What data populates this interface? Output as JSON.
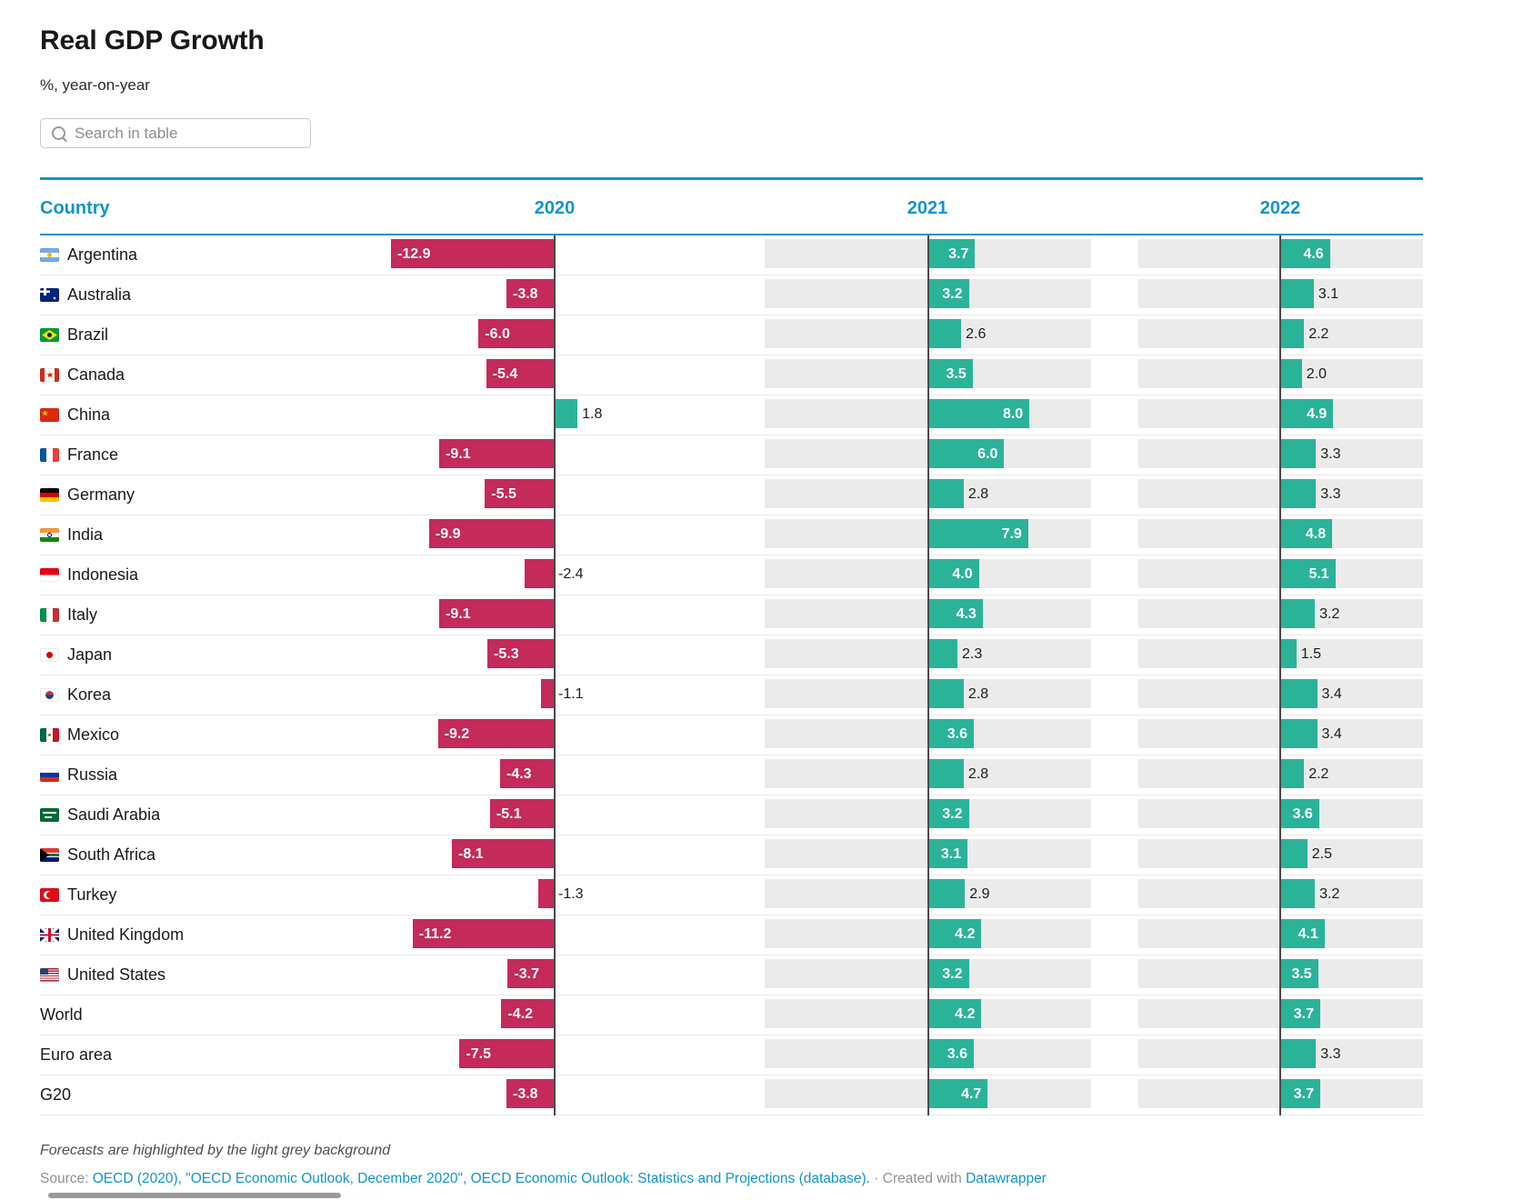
{
  "page": {
    "title": "Real GDP Growth",
    "subtitle": "%, year-on-year"
  },
  "search": {
    "placeholder": "Search in table",
    "icon": "magnifier"
  },
  "table": {
    "header": {
      "country": "Country",
      "y2020": "2020",
      "y2021": "2021",
      "y2022": "2022"
    }
  },
  "colors": {
    "accent_blue": "#1294cc",
    "negative_bar": "#c42a5a",
    "positive_bar": "#2bb39a",
    "forecast_background": "#ebebeb",
    "zero_line": "#4a4a4a",
    "row_separator": "#e9e9e9"
  },
  "chart_data": {
    "type": "bar",
    "title": "Real GDP Growth",
    "subtitle": "%, year-on-year",
    "unit": "%",
    "categories": [
      "2020",
      "2021",
      "2022"
    ],
    "forecast_columns": [
      "2021",
      "2022"
    ],
    "negative_color": "#c42a5a",
    "positive_color": "#2bb39a",
    "value_decimals": 1,
    "rows": [
      {
        "name": "Argentina",
        "flag": "ar",
        "values": [
          -12.9,
          3.7,
          4.6
        ]
      },
      {
        "name": "Australia",
        "flag": "au",
        "values": [
          -3.8,
          3.2,
          3.1
        ]
      },
      {
        "name": "Brazil",
        "flag": "br",
        "values": [
          -6.0,
          2.6,
          2.2
        ]
      },
      {
        "name": "Canada",
        "flag": "ca",
        "values": [
          -5.4,
          3.5,
          2.0
        ]
      },
      {
        "name": "China",
        "flag": "cn",
        "values": [
          1.8,
          8.0,
          4.9
        ]
      },
      {
        "name": "France",
        "flag": "fr",
        "values": [
          -9.1,
          6.0,
          3.3
        ]
      },
      {
        "name": "Germany",
        "flag": "de",
        "values": [
          -5.5,
          2.8,
          3.3
        ]
      },
      {
        "name": "India",
        "flag": "in",
        "values": [
          -9.9,
          7.9,
          4.8
        ]
      },
      {
        "name": "Indonesia",
        "flag": "id",
        "values": [
          -2.4,
          4.0,
          5.1
        ]
      },
      {
        "name": "Italy",
        "flag": "it",
        "values": [
          -9.1,
          4.3,
          3.2
        ]
      },
      {
        "name": "Japan",
        "flag": "jp",
        "values": [
          -5.3,
          2.3,
          1.5
        ]
      },
      {
        "name": "Korea",
        "flag": "kr",
        "values": [
          -1.1,
          2.8,
          3.4
        ]
      },
      {
        "name": "Mexico",
        "flag": "mx",
        "values": [
          -9.2,
          3.6,
          3.4
        ]
      },
      {
        "name": "Russia",
        "flag": "ru",
        "values": [
          -4.3,
          2.8,
          2.2
        ]
      },
      {
        "name": "Saudi Arabia",
        "flag": "sa",
        "values": [
          -5.1,
          3.2,
          3.6
        ]
      },
      {
        "name": "South Africa",
        "flag": "za",
        "values": [
          -8.1,
          3.1,
          2.5
        ]
      },
      {
        "name": "Turkey",
        "flag": "tr",
        "values": [
          -1.3,
          2.9,
          3.2
        ]
      },
      {
        "name": "United Kingdom",
        "flag": "gb",
        "values": [
          -11.2,
          4.2,
          4.1
        ]
      },
      {
        "name": "United States",
        "flag": "us",
        "values": [
          -3.7,
          3.2,
          3.5
        ]
      },
      {
        "name": "World",
        "flag": null,
        "values": [
          -4.2,
          4.2,
          3.7
        ]
      },
      {
        "name": "Euro area",
        "flag": null,
        "values": [
          -7.5,
          3.6,
          3.3
        ]
      },
      {
        "name": "G20",
        "flag": null,
        "values": [
          -3.8,
          4.7,
          3.7
        ]
      }
    ]
  },
  "footer": {
    "note": "Forecasts are highlighted by the light grey background",
    "source_label": "Source:",
    "source_links": "OECD (2020), \"OECD Economic Outlook, December 2020\", OECD Economic Outlook: Statistics and Projections (database).",
    "separator": "·",
    "created_with": "Created with",
    "created_with_link": "Datawrapper"
  }
}
